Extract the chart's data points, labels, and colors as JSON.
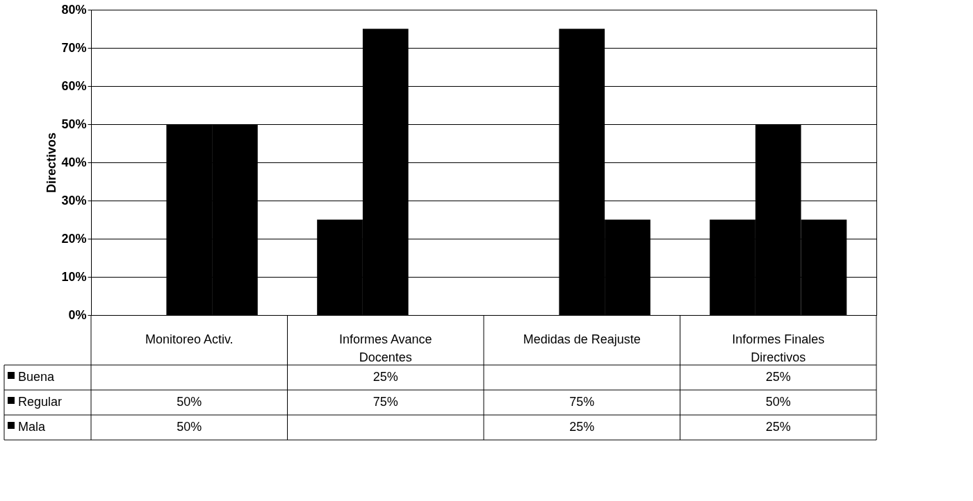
{
  "chart_data": {
    "type": "bar",
    "ylabel": "Directivos",
    "categories": [
      "Monitoreo Activ.",
      "Informes Avance Docentes",
      "Medidas de Reajuste",
      "Informes Finales Directivos"
    ],
    "series": [
      {
        "name": "Buena",
        "color": "#000000",
        "values": [
          null,
          25,
          null,
          25
        ],
        "value_labels": [
          null,
          "25%",
          null,
          "25%"
        ]
      },
      {
        "name": "Regular",
        "color": "#000000",
        "values": [
          50,
          75,
          75,
          50
        ],
        "value_labels": [
          "50%",
          "75%",
          "75%",
          "50%"
        ]
      },
      {
        "name": "Mala",
        "color": "#000000",
        "values": [
          50,
          null,
          25,
          25
        ],
        "value_labels": [
          "50%",
          null,
          "25%",
          "25%"
        ]
      }
    ],
    "ylim": [
      0,
      80
    ],
    "yticks": [
      {
        "value": 0,
        "label": "0%"
      },
      {
        "value": 10,
        "label": "10%"
      },
      {
        "value": 20,
        "label": "20%"
      },
      {
        "value": 30,
        "label": "30%"
      },
      {
        "value": 40,
        "label": "40%"
      },
      {
        "value": 50,
        "label": "50%"
      },
      {
        "value": 60,
        "label": "60%"
      },
      {
        "value": 70,
        "label": "70%"
      },
      {
        "value": 80,
        "label": "80%"
      }
    ],
    "grid": "y",
    "legend": "bottom left"
  }
}
